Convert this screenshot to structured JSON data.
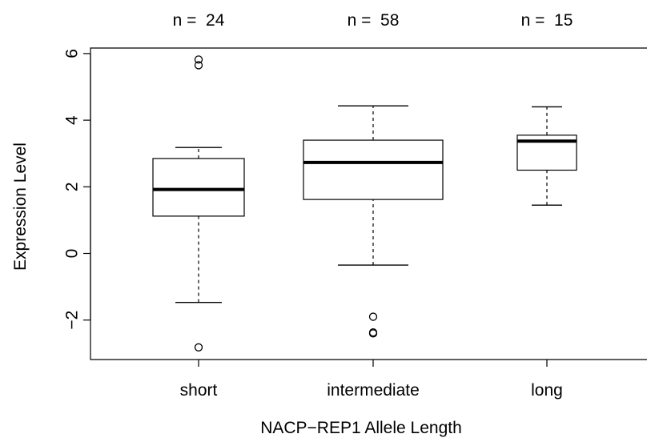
{
  "chart_data": {
    "type": "boxplot",
    "title": "",
    "xlabel": "NACP−REP1 Allele Length",
    "ylabel": "Expression Level",
    "ylim": [
      -3.2,
      6.2
    ],
    "yticks": [
      -2,
      0,
      2,
      4,
      6
    ],
    "ytick_labels": [
      "−2",
      "0",
      "2",
      "4",
      "6"
    ],
    "grid": false,
    "categories": [
      "short",
      "intermediate",
      "long"
    ],
    "counts": [
      "n =  24",
      "n =  58",
      "n =  15"
    ],
    "boxes": [
      {
        "name": "short",
        "whisker_low": -1.47,
        "q1": 1.12,
        "median": 1.92,
        "q3": 2.85,
        "whisker_high": 3.18,
        "outliers": [
          5.65,
          5.82,
          -2.82
        ]
      },
      {
        "name": "intermediate",
        "whisker_low": -0.35,
        "q1": 1.62,
        "median": 2.73,
        "q3": 3.4,
        "whisker_high": 4.43,
        "outliers": [
          -1.9,
          -2.37,
          -2.4
        ]
      },
      {
        "name": "long",
        "whisker_low": 1.45,
        "q1": 2.5,
        "median": 3.37,
        "q3": 3.55,
        "whisker_high": 4.4,
        "outliers": []
      }
    ]
  }
}
